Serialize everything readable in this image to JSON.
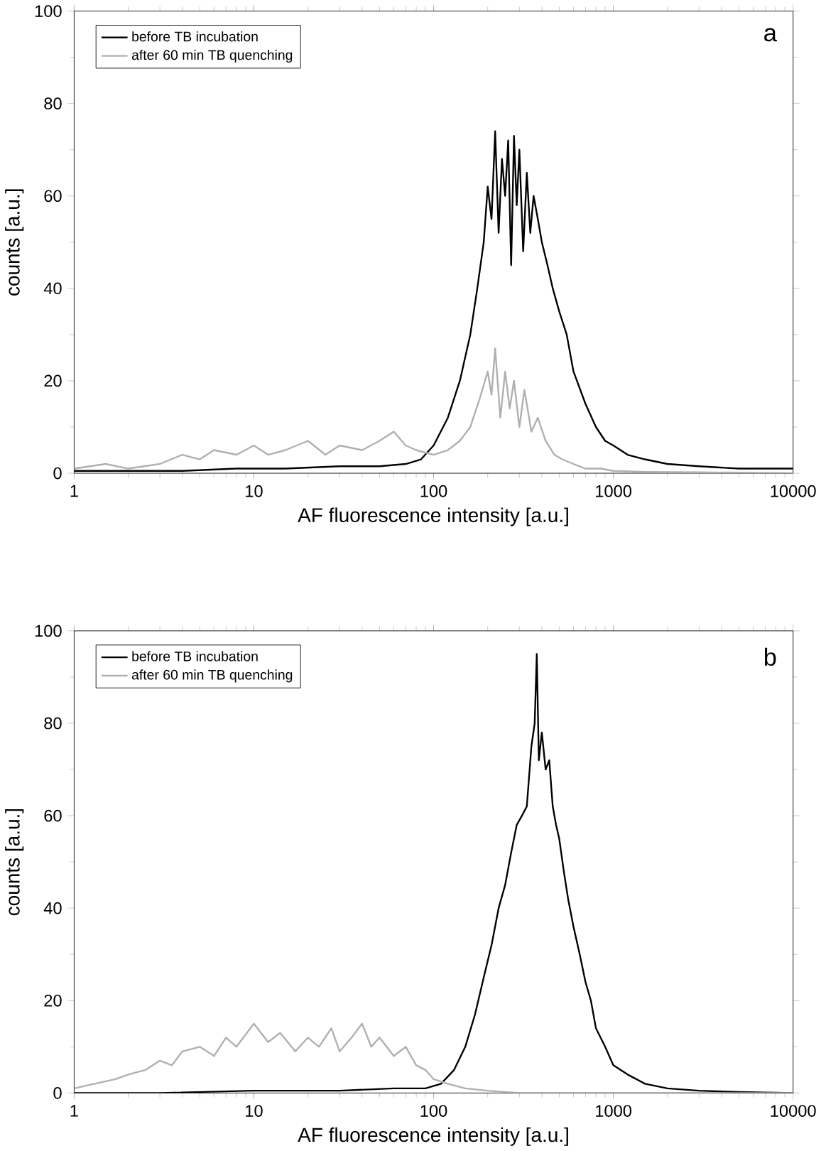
{
  "chart_data": [
    {
      "type": "line",
      "xlabel": "AF fluorescence intensity [a.u.]",
      "ylabel": "counts [a.u.]",
      "log": "x",
      "xlim": [
        1,
        10000
      ],
      "xticks": [
        1,
        10,
        100,
        1000,
        10000
      ],
      "ylim": [
        0,
        100
      ],
      "yticks": [
        0,
        20,
        40,
        60,
        80,
        100
      ],
      "legend": "top left",
      "annotations": [
        "a"
      ],
      "series": [
        {
          "name": "before TB incubation",
          "color": "#000000",
          "x": [
            1,
            2,
            4,
            8,
            15,
            30,
            50,
            70,
            85,
            100,
            120,
            140,
            160,
            175,
            190,
            200,
            210,
            220,
            230,
            240,
            250,
            260,
            270,
            280,
            290,
            300,
            315,
            330,
            345,
            360,
            380,
            400,
            430,
            460,
            500,
            550,
            600,
            700,
            800,
            900,
            1000,
            1200,
            1500,
            2000,
            3000,
            5000,
            7000,
            10000
          ],
          "values": [
            0.5,
            0.5,
            0.5,
            1,
            1,
            1.5,
            1.5,
            2,
            3,
            6,
            12,
            20,
            30,
            40,
            50,
            62,
            55,
            74,
            52,
            68,
            60,
            72,
            45,
            73,
            58,
            70,
            48,
            65,
            52,
            60,
            55,
            50,
            45,
            40,
            35,
            30,
            22,
            15,
            10,
            7,
            6,
            4,
            3,
            2,
            1.5,
            1,
            1,
            1
          ]
        },
        {
          "name": "after 60 min TB quenching",
          "color": "#b0b0b0",
          "x": [
            1,
            1.5,
            2,
            3,
            4,
            5,
            6,
            8,
            10,
            12,
            15,
            20,
            25,
            30,
            40,
            50,
            60,
            70,
            80,
            100,
            120,
            140,
            160,
            180,
            200,
            210,
            220,
            235,
            250,
            265,
            280,
            300,
            320,
            350,
            380,
            420,
            470,
            520,
            600,
            700,
            850,
            1000,
            1500,
            3000,
            10000
          ],
          "values": [
            1,
            2,
            1,
            2,
            4,
            3,
            5,
            4,
            6,
            4,
            5,
            7,
            4,
            6,
            5,
            7,
            9,
            6,
            5,
            4,
            5,
            7,
            10,
            16,
            22,
            17,
            27,
            12,
            22,
            14,
            20,
            10,
            18,
            9,
            12,
            7,
            4,
            3,
            2,
            1,
            1,
            0.5,
            0.3,
            0.2,
            0
          ]
        }
      ]
    },
    {
      "type": "line",
      "xlabel": "AF fluorescence intensity [a.u.]",
      "ylabel": "counts [a.u.]",
      "log": "x",
      "xlim": [
        1,
        10000
      ],
      "xticks": [
        1,
        10,
        100,
        1000,
        10000
      ],
      "ylim": [
        0,
        100
      ],
      "yticks": [
        0,
        20,
        40,
        60,
        80,
        100
      ],
      "legend": "top left",
      "annotations": [
        "b"
      ],
      "series": [
        {
          "name": "before TB incubation",
          "color": "#000000",
          "x": [
            1,
            3,
            10,
            30,
            60,
            90,
            110,
            130,
            150,
            170,
            190,
            210,
            230,
            250,
            270,
            290,
            310,
            330,
            350,
            365,
            375,
            385,
            400,
            420,
            440,
            460,
            480,
            500,
            530,
            560,
            600,
            650,
            700,
            750,
            800,
            900,
            1000,
            1200,
            1500,
            2000,
            3000,
            5000,
            10000
          ],
          "values": [
            0,
            0,
            0.5,
            0.5,
            1,
            1,
            2,
            5,
            10,
            17,
            25,
            32,
            40,
            45,
            52,
            58,
            60,
            62,
            75,
            80,
            95,
            72,
            78,
            70,
            72,
            62,
            58,
            55,
            48,
            42,
            36,
            30,
            24,
            20,
            14,
            10,
            6,
            4,
            2,
            1,
            0.5,
            0.2,
            0
          ]
        },
        {
          "name": "after 60 min TB quenching",
          "color": "#b0b0b0",
          "x": [
            1,
            1.3,
            1.7,
            2,
            2.5,
            3,
            3.5,
            4,
            5,
            6,
            7,
            8,
            10,
            12,
            14,
            17,
            20,
            23,
            27,
            30,
            35,
            40,
            45,
            50,
            60,
            70,
            80,
            90,
            100,
            120,
            150,
            200,
            300,
            1000,
            10000
          ],
          "values": [
            1,
            2,
            3,
            4,
            5,
            7,
            6,
            9,
            10,
            8,
            12,
            10,
            15,
            11,
            13,
            9,
            12,
            10,
            14,
            9,
            12,
            15,
            10,
            12,
            8,
            10,
            6,
            5,
            3,
            2,
            1,
            0.5,
            0,
            0,
            0
          ]
        }
      ]
    }
  ]
}
